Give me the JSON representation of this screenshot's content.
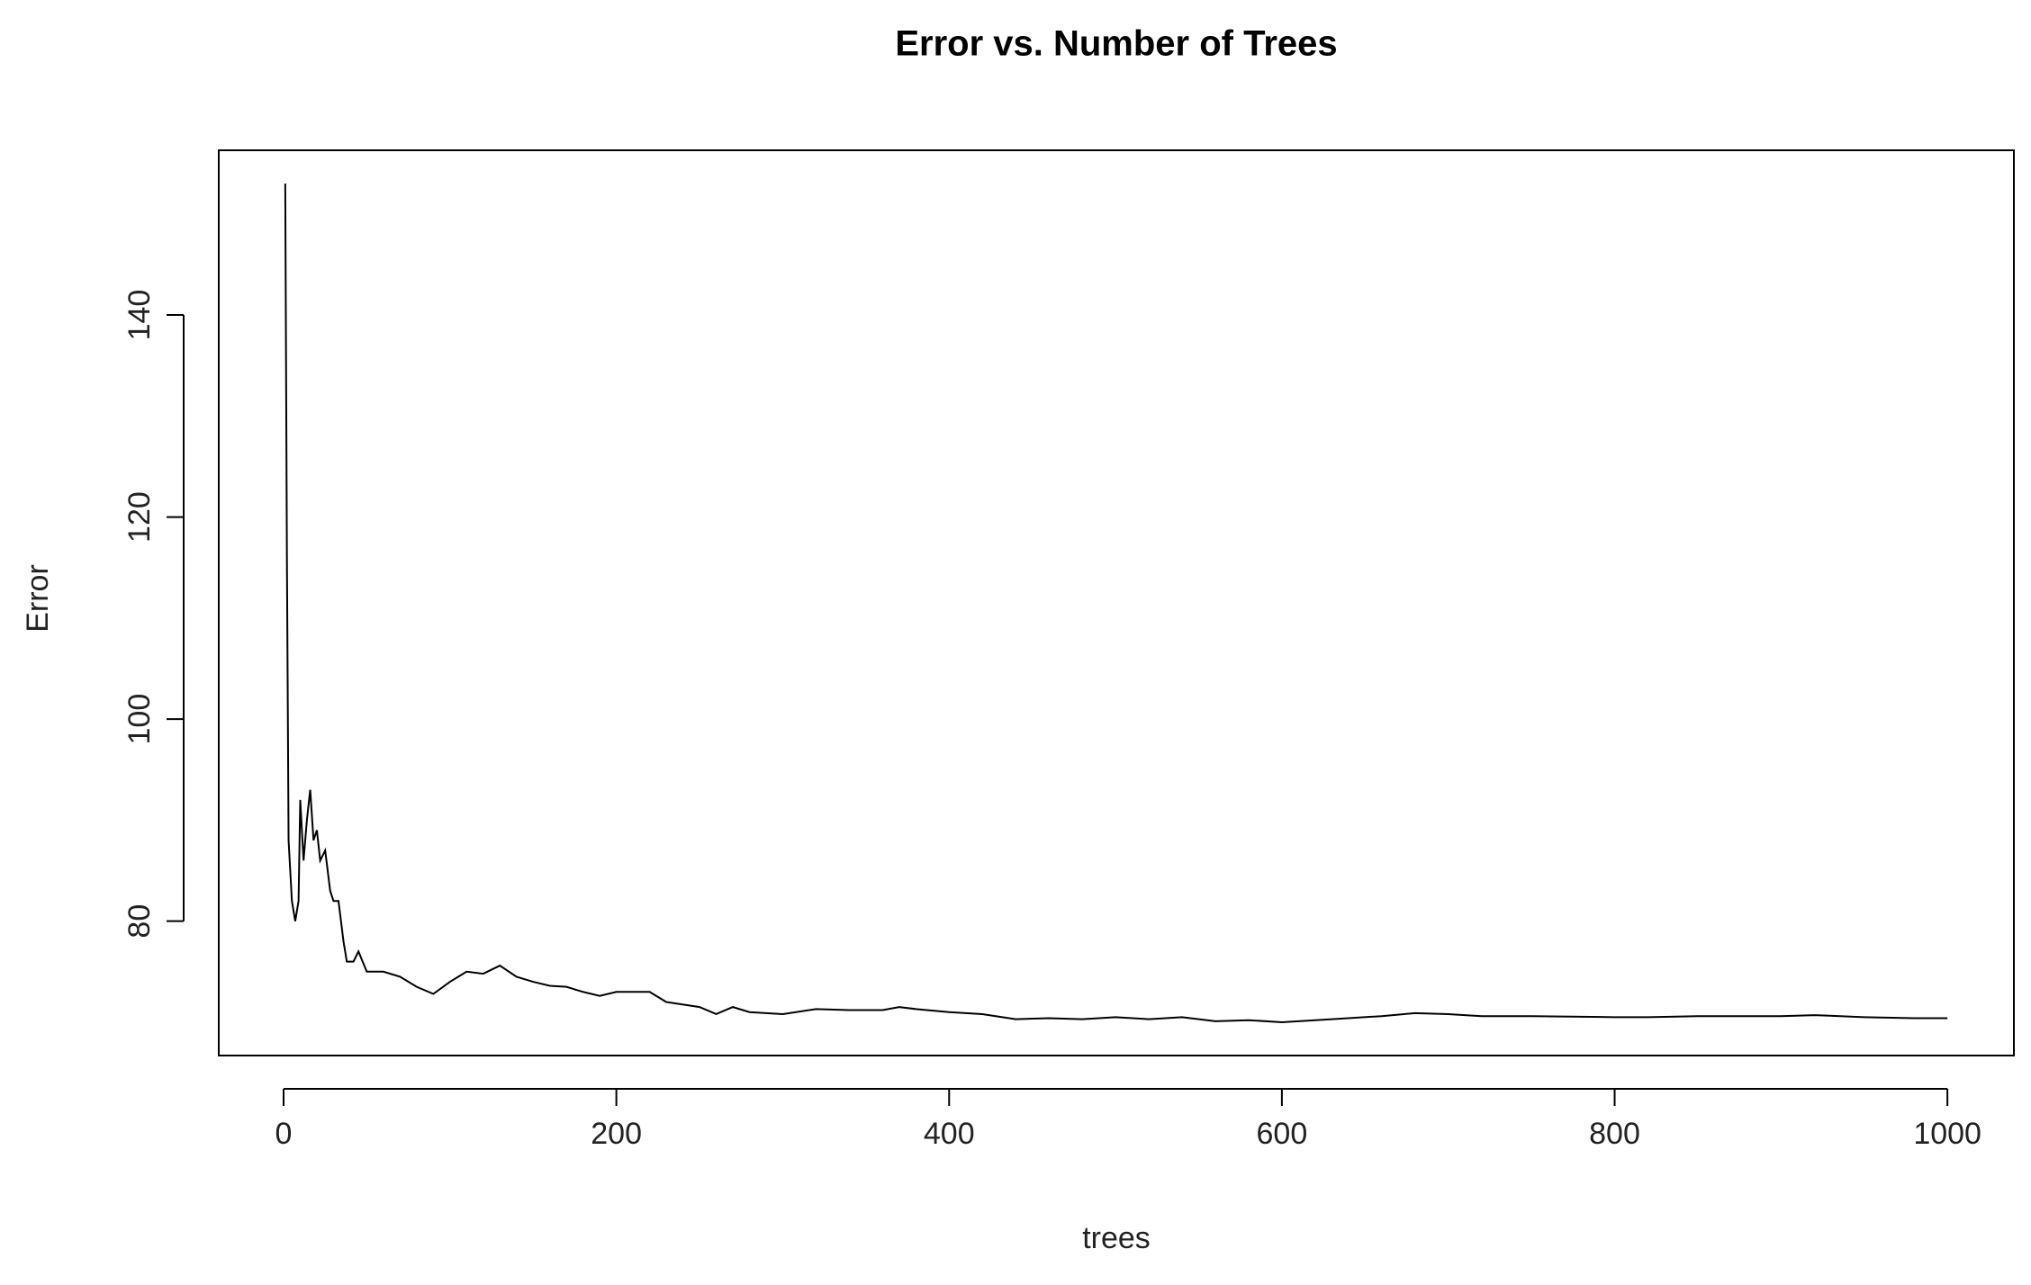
{
  "chart_data": {
    "type": "line",
    "title": "Error vs. Number of Trees",
    "x_label": "trees",
    "y_label": "Error",
    "color": "#000000",
    "x": [
      1,
      2,
      3,
      5,
      7,
      9,
      10,
      12,
      14,
      16,
      18,
      20,
      22,
      25,
      28,
      30,
      33,
      36,
      38,
      42,
      45,
      50,
      60,
      70,
      80,
      90,
      100,
      110,
      120,
      130,
      140,
      150,
      160,
      170,
      180,
      190,
      200,
      220,
      230,
      250,
      260,
      270,
      280,
      300,
      320,
      340,
      360,
      370,
      380,
      400,
      420,
      440,
      460,
      480,
      500,
      520,
      540,
      560,
      580,
      600,
      620,
      640,
      660,
      680,
      700,
      720,
      750,
      800,
      820,
      850,
      900,
      920,
      950,
      980,
      1000
    ],
    "values": [
      153,
      116,
      88,
      82,
      80,
      82,
      92,
      86,
      90,
      93,
      88,
      89,
      86,
      87,
      83,
      82,
      82,
      78,
      76,
      76,
      77,
      75,
      75,
      74.5,
      73.5,
      72.8,
      74,
      75,
      74.8,
      75.6,
      74.5,
      74,
      73.6,
      73.5,
      73,
      72.6,
      73,
      73,
      72,
      71.5,
      70.8,
      71.5,
      71,
      70.8,
      71.3,
      71.2,
      71.2,
      71.5,
      71.3,
      71,
      70.8,
      70.3,
      70.4,
      70.3,
      70.5,
      70.3,
      70.5,
      70.1,
      70.2,
      70,
      70.2,
      70.4,
      70.6,
      70.9,
      70.8,
      70.6,
      70.6,
      70.5,
      70.5,
      70.6,
      70.6,
      70.7,
      70.5,
      70.4,
      70.4
    ],
    "xlim": [
      -38.96,
      1039.96
    ],
    "ylim": [
      66.7,
      156.3
    ],
    "xticks": [
      0,
      200,
      400,
      600,
      800,
      1000
    ],
    "yticks": [
      80,
      100,
      120,
      140
    ]
  }
}
